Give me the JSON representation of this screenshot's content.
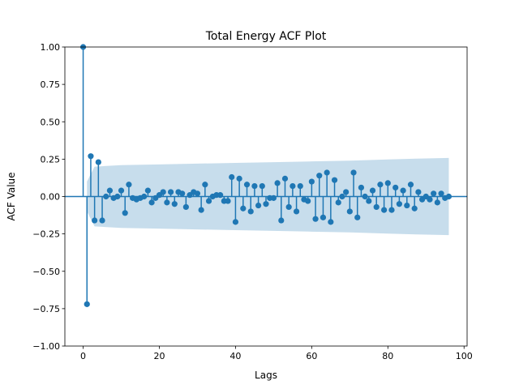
{
  "chart_data": {
    "type": "stem",
    "title": "Total Energy ACF Plot",
    "xlabel": "Lags",
    "ylabel": "ACF Value",
    "xlim": [
      -4.8,
      100.8
    ],
    "ylim": [
      -1.0,
      1.0
    ],
    "x_ticks": [
      0,
      20,
      40,
      60,
      80,
      100
    ],
    "y_ticks": [
      -1.0,
      -0.75,
      -0.5,
      -0.25,
      0.0,
      0.25,
      0.5,
      0.75,
      1.0
    ],
    "x_tick_labels": [
      "0",
      "20",
      "40",
      "60",
      "80",
      "100"
    ],
    "y_tick_labels": [
      "−1.00",
      "−0.75",
      "−0.50",
      "−0.25",
      "0.00",
      "0.25",
      "0.50",
      "0.75",
      "1.00"
    ],
    "grid": false,
    "colors": {
      "stem": "#1f77b4",
      "confidence_band": "#1f77b4"
    },
    "lags": [
      0,
      1,
      2,
      3,
      4,
      5,
      6,
      7,
      8,
      9,
      10,
      11,
      12,
      13,
      14,
      15,
      16,
      17,
      18,
      19,
      20,
      21,
      22,
      23,
      24,
      25,
      26,
      27,
      28,
      29,
      30,
      31,
      32,
      33,
      34,
      35,
      36,
      37,
      38,
      39,
      40,
      41,
      42,
      43,
      44,
      45,
      46,
      47,
      48,
      49,
      50,
      51,
      52,
      53,
      54,
      55,
      56,
      57,
      58,
      59,
      60,
      61,
      62,
      63,
      64,
      65,
      66,
      67,
      68,
      69,
      70,
      71,
      72,
      73,
      74,
      75,
      76,
      77,
      78,
      79,
      80,
      81,
      82,
      83,
      84,
      85,
      86,
      87,
      88,
      89,
      90,
      91,
      92,
      93,
      94,
      95,
      96
    ],
    "acf": [
      1.0,
      -0.72,
      0.27,
      -0.16,
      0.23,
      -0.16,
      0.0,
      0.04,
      -0.01,
      0.0,
      0.04,
      -0.11,
      0.08,
      -0.01,
      -0.02,
      -0.01,
      0.0,
      0.04,
      -0.04,
      -0.01,
      0.01,
      0.03,
      -0.04,
      0.03,
      -0.05,
      0.03,
      0.02,
      -0.07,
      0.01,
      0.03,
      0.02,
      -0.09,
      0.08,
      -0.03,
      0.0,
      0.01,
      0.01,
      -0.03,
      -0.03,
      0.13,
      -0.17,
      0.12,
      -0.08,
      0.08,
      -0.1,
      0.07,
      -0.06,
      0.07,
      -0.05,
      -0.01,
      -0.01,
      0.09,
      -0.16,
      0.12,
      -0.07,
      0.07,
      -0.1,
      0.07,
      -0.02,
      -0.03,
      0.1,
      -0.15,
      0.14,
      -0.14,
      0.16,
      -0.17,
      0.11,
      -0.04,
      0.0,
      0.03,
      -0.1,
      0.16,
      -0.14,
      0.06,
      0.0,
      -0.03,
      0.04,
      -0.07,
      0.08,
      -0.09,
      0.09,
      -0.09,
      0.06,
      -0.05,
      0.04,
      -0.06,
      0.08,
      -0.08,
      0.03,
      -0.02,
      0.0,
      -0.02,
      0.02,
      -0.04,
      0.02,
      -0.01,
      0.0
    ],
    "confidence_band": {
      "lags": [
        1,
        3,
        10,
        20,
        30,
        40,
        50,
        60,
        70,
        80,
        90,
        96
      ],
      "upper": [
        0.1,
        0.2,
        0.21,
        0.215,
        0.22,
        0.225,
        0.23,
        0.235,
        0.24,
        0.248,
        0.255,
        0.258
      ],
      "lower": [
        -0.1,
        -0.2,
        -0.21,
        -0.215,
        -0.22,
        -0.225,
        -0.23,
        -0.235,
        -0.24,
        -0.248,
        -0.255,
        -0.258
      ]
    }
  }
}
